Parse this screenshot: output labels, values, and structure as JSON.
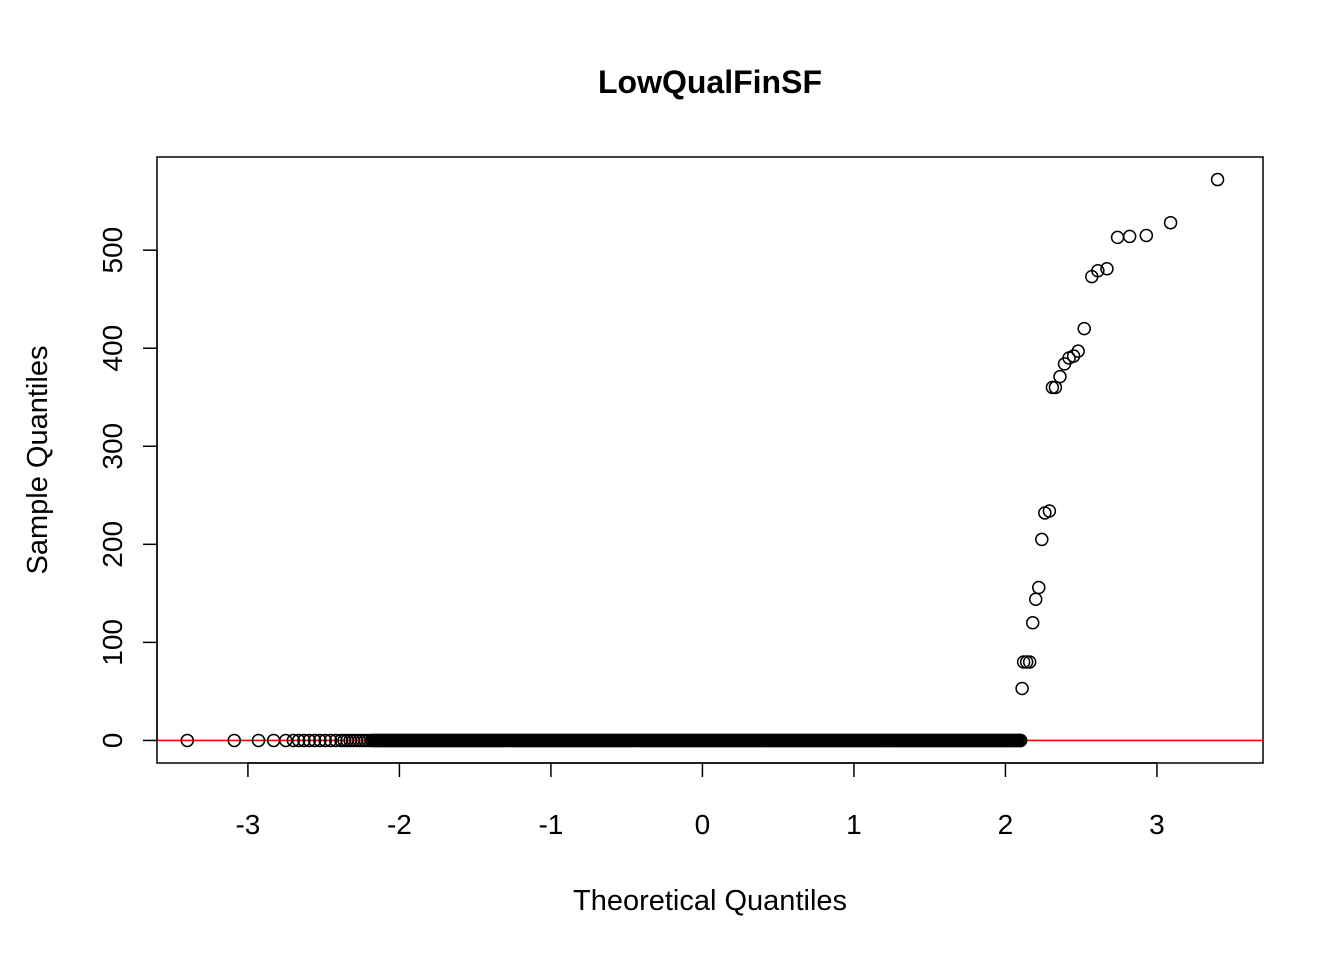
{
  "chart_data": {
    "type": "scatter",
    "title": "LowQualFinSF",
    "xlabel": "Theoretical Quantiles",
    "ylabel": "Sample Quantiles",
    "xlim": [
      -3.6,
      3.7
    ],
    "ylim": [
      -23,
      595
    ],
    "xticks": [
      -3,
      -2,
      -1,
      0,
      1,
      2,
      3
    ],
    "yticks": [
      0,
      100,
      200,
      300,
      400,
      500
    ],
    "reference_line": {
      "y": 0,
      "color": "#ff0000"
    },
    "zero_points": {
      "x_start": -3.4,
      "x_end": 2.1,
      "y": 0,
      "extreme_x": [
        -3.4,
        -3.09,
        -2.93,
        -2.83,
        -2.75
      ]
    },
    "points": [
      {
        "x": 2.11,
        "y": 53
      },
      {
        "x": 2.12,
        "y": 80
      },
      {
        "x": 2.14,
        "y": 80
      },
      {
        "x": 2.16,
        "y": 80
      },
      {
        "x": 2.18,
        "y": 120
      },
      {
        "x": 2.2,
        "y": 144
      },
      {
        "x": 2.22,
        "y": 156
      },
      {
        "x": 2.24,
        "y": 205
      },
      {
        "x": 2.26,
        "y": 232
      },
      {
        "x": 2.29,
        "y": 234
      },
      {
        "x": 2.31,
        "y": 360
      },
      {
        "x": 2.33,
        "y": 360
      },
      {
        "x": 2.36,
        "y": 371
      },
      {
        "x": 2.39,
        "y": 384
      },
      {
        "x": 2.42,
        "y": 390
      },
      {
        "x": 2.45,
        "y": 392
      },
      {
        "x": 2.48,
        "y": 397
      },
      {
        "x": 2.52,
        "y": 420
      },
      {
        "x": 2.57,
        "y": 473
      },
      {
        "x": 2.61,
        "y": 479
      },
      {
        "x": 2.67,
        "y": 481
      },
      {
        "x": 2.74,
        "y": 513
      },
      {
        "x": 2.82,
        "y": 514
      },
      {
        "x": 2.93,
        "y": 515
      },
      {
        "x": 3.09,
        "y": 528
      },
      {
        "x": 3.4,
        "y": 572
      }
    ],
    "grid": false,
    "marker": "open-circle",
    "colors": {
      "points": "#000000",
      "reference_line": "#ff0000"
    }
  }
}
